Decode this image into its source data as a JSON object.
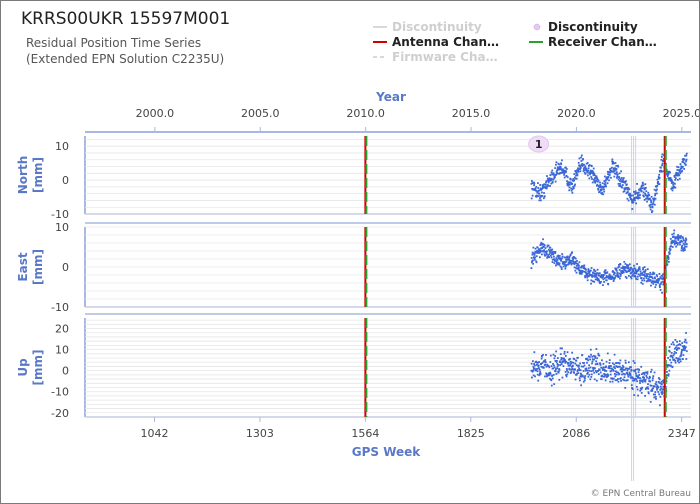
{
  "title": "KRRS00UKR 15597M001",
  "subtitle_line1": "Residual Position Time Series",
  "subtitle_line2": "(Extended EPN Solution C2235U)",
  "credit": "© EPN Central Bureau",
  "legend": [
    {
      "label": "Discontinuity",
      "color": "#d8d8d8",
      "style": "line",
      "muted": true
    },
    {
      "label": "Discontinuity",
      "color": "#e8c8f0",
      "style": "marker",
      "muted": false
    },
    {
      "label": "Antenna Chan…",
      "color": "#d00000",
      "style": "line",
      "muted": false
    },
    {
      "label": "Receiver Chan…",
      "color": "#2ca02c",
      "style": "line",
      "muted": false
    },
    {
      "label": "Firmware Cha…",
      "color": "#d8d8d8",
      "style": "dash",
      "muted": true
    }
  ],
  "colors": {
    "data": "#3a66d6",
    "axis": "#a8b8e0",
    "grid": "#e6e6e6",
    "title": "#5a78c8",
    "antenna": "#d00000",
    "receiver": "#2ca02c"
  },
  "chart_data": {
    "type": "scatter",
    "top_axis": {
      "label": "Year",
      "ticks": [
        "2000.0",
        "2005.0",
        "2010.0",
        "2015.0",
        "2020.0",
        "2025.0"
      ],
      "tick_values": [
        2000,
        2005,
        2010,
        2015,
        2020,
        2025
      ]
    },
    "bottom_axis": {
      "label": "GPS Week",
      "ticks": [
        "1042",
        "1303",
        "1564",
        "1825",
        "2086",
        "2347"
      ],
      "tick_values": [
        1042,
        1303,
        1564,
        1825,
        2086,
        2347
      ],
      "range": [
        870,
        2370
      ]
    },
    "antenna_changes": [
      1564,
      2305
    ],
    "receiver_changes": [
      1564,
      2305
    ],
    "discontinuity_weeks": [
      2260,
      2265,
      2270
    ],
    "discontinuity_marker": {
      "label": "1",
      "week": 1988
    },
    "panels": [
      {
        "name": "North",
        "unit": "[mm]",
        "ylim": [
          -10,
          13
        ],
        "ticks": [
          "10",
          "0",
          "-10"
        ],
        "tick_values": [
          10,
          0,
          -10
        ],
        "data_start": 1975,
        "data_end": 2360,
        "scatter": 1.5,
        "series": {
          "x": [
            1975,
            2000,
            2025,
            2050,
            2075,
            2100,
            2125,
            2150,
            2175,
            2200,
            2225,
            2250,
            2275,
            2300,
            2325,
            2350,
            2360
          ],
          "y": [
            -2,
            -4,
            1,
            4,
            -2,
            5,
            2,
            -3,
            4,
            -1,
            -6,
            -2,
            -8,
            6,
            -2,
            5,
            6
          ]
        }
      },
      {
        "name": "East",
        "unit": "[mm]",
        "ylim": [
          -10,
          10
        ],
        "ticks": [
          "10",
          "0",
          "-10"
        ],
        "tick_values": [
          10,
          0,
          -10
        ],
        "data_start": 1975,
        "data_end": 2360,
        "scatter": 1.2,
        "series": {
          "x": [
            1975,
            2000,
            2025,
            2050,
            2075,
            2100,
            2125,
            2150,
            2175,
            2200,
            2225,
            2250,
            2275,
            2300,
            2325,
            2350,
            2360
          ],
          "y": [
            2,
            5,
            3,
            1,
            2,
            -1,
            -2,
            -3,
            -2,
            -1,
            -1,
            -2,
            -3,
            -4,
            7,
            6,
            6
          ]
        }
      },
      {
        "name": "Up",
        "unit": "[mm]",
        "ylim": [
          -22,
          25
        ],
        "ticks": [
          "20",
          "10",
          "0",
          "-10",
          "-20"
        ],
        "tick_values": [
          20,
          10,
          0,
          -10,
          -20
        ],
        "data_start": 1975,
        "data_end": 2360,
        "scatter": 4,
        "series": {
          "x": [
            1975,
            2000,
            2025,
            2050,
            2075,
            2100,
            2125,
            2150,
            2175,
            2200,
            2225,
            2250,
            2275,
            2300,
            2325,
            2350,
            2360
          ],
          "y": [
            1,
            3,
            0,
            4,
            2,
            0,
            3,
            1,
            -1,
            0,
            -2,
            -5,
            -7,
            -9,
            8,
            10,
            12
          ]
        }
      }
    ]
  }
}
